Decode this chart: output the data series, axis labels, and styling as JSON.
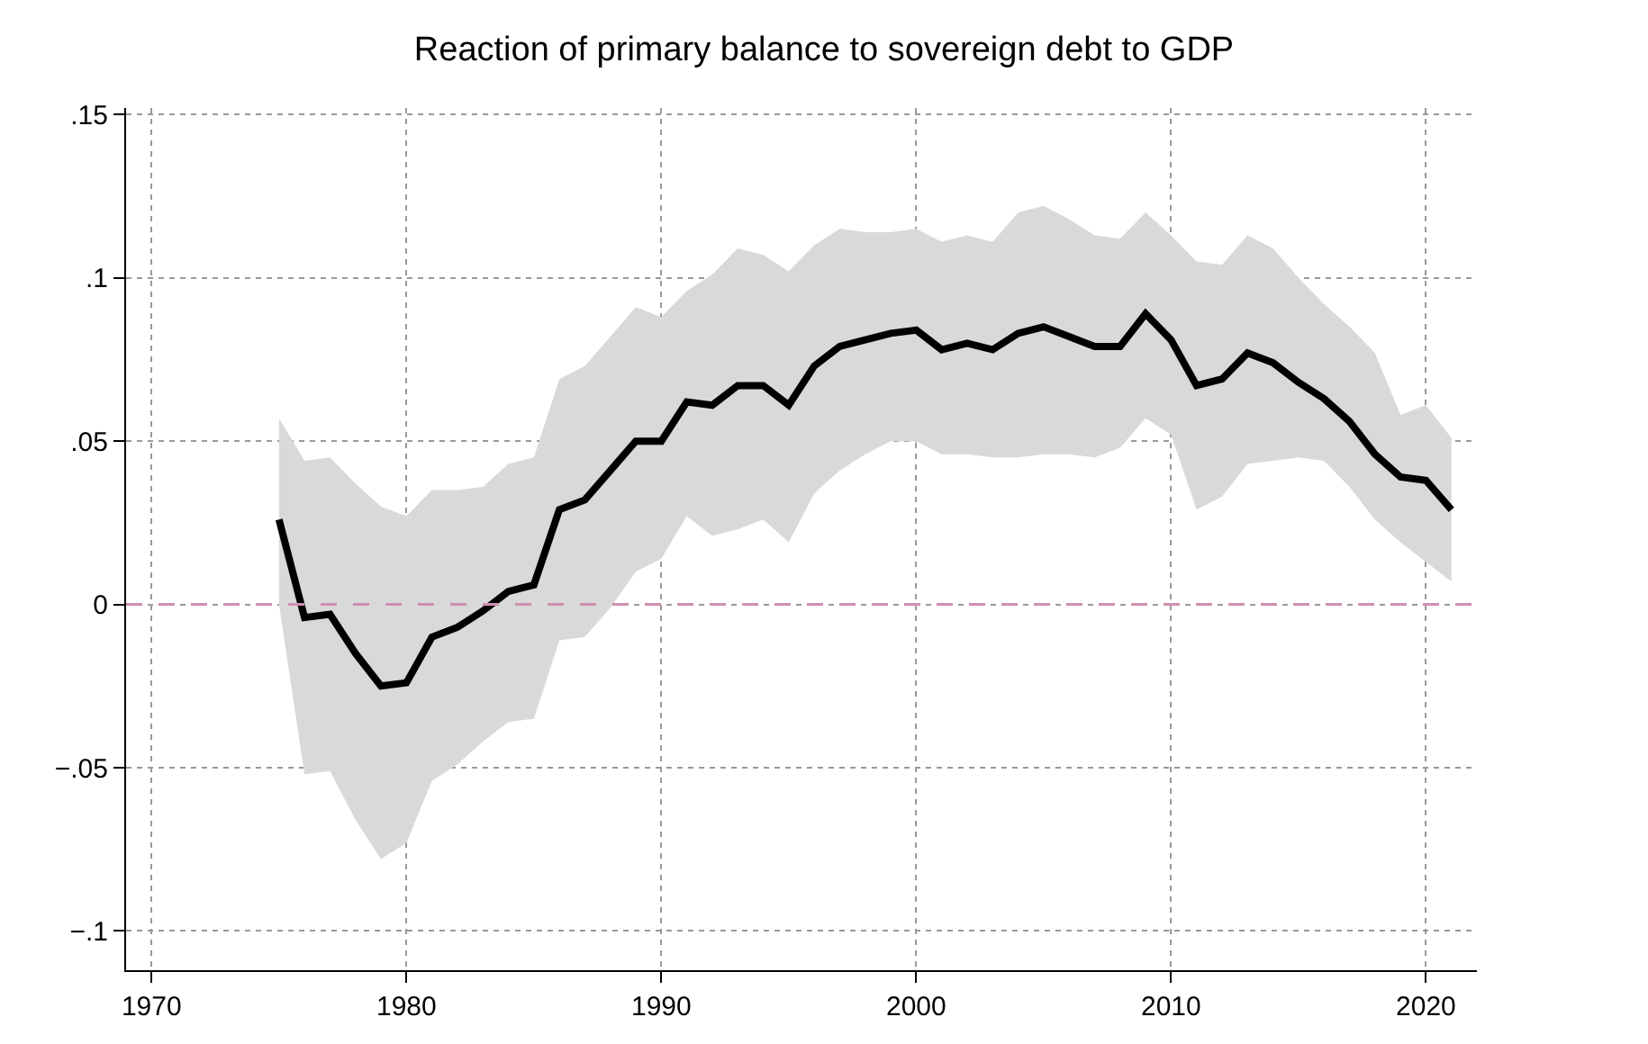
{
  "chart_data": {
    "type": "line",
    "title": "Reaction of primary balance to sovereign debt to GDP",
    "x": [
      1975,
      1976,
      1977,
      1978,
      1979,
      1980,
      1981,
      1982,
      1983,
      1984,
      1985,
      1986,
      1987,
      1988,
      1989,
      1990,
      1991,
      1992,
      1993,
      1994,
      1995,
      1996,
      1997,
      1998,
      1999,
      2000,
      2001,
      2002,
      2003,
      2004,
      2005,
      2006,
      2007,
      2008,
      2009,
      2010,
      2011,
      2012,
      2013,
      2014,
      2015,
      2016,
      2017,
      2018,
      2019,
      2020,
      2021
    ],
    "series": [
      {
        "color": "#000000",
        "values": [
          0.026,
          -0.004,
          -0.003,
          -0.015,
          -0.025,
          -0.024,
          -0.01,
          -0.007,
          -0.002,
          0.004,
          0.006,
          0.029,
          0.032,
          0.041,
          0.05,
          0.05,
          0.062,
          0.061,
          0.067,
          0.067,
          0.061,
          0.073,
          0.079,
          0.081,
          0.083,
          0.084,
          0.078,
          0.08,
          0.078,
          0.083,
          0.085,
          0.082,
          0.079,
          0.079,
          0.089,
          0.081,
          0.067,
          0.069,
          0.077,
          0.074,
          0.068,
          0.063,
          0.056,
          0.046,
          0.039,
          0.038,
          0.029
        ],
        "upper": [
          0.057,
          0.044,
          0.045,
          0.037,
          0.03,
          0.027,
          0.035,
          0.035,
          0.036,
          0.043,
          0.045,
          0.069,
          0.073,
          0.082,
          0.091,
          0.088,
          0.096,
          0.101,
          0.109,
          0.107,
          0.102,
          0.11,
          0.115,
          0.114,
          0.114,
          0.115,
          0.111,
          0.113,
          0.111,
          0.12,
          0.122,
          0.118,
          0.113,
          0.112,
          0.12,
          0.113,
          0.105,
          0.104,
          0.113,
          0.109,
          0.1,
          0.092,
          0.085,
          0.077,
          0.058,
          0.061,
          0.051
        ],
        "lower": [
          0.0,
          -0.052,
          -0.051,
          -0.066,
          -0.078,
          -0.073,
          -0.054,
          -0.049,
          -0.042,
          -0.036,
          -0.035,
          -0.011,
          -0.01,
          -0.001,
          0.01,
          0.014,
          0.027,
          0.021,
          0.023,
          0.026,
          0.019,
          0.034,
          0.041,
          0.046,
          0.05,
          0.05,
          0.046,
          0.046,
          0.045,
          0.045,
          0.046,
          0.046,
          0.045,
          0.048,
          0.057,
          0.052,
          0.029,
          0.033,
          0.043,
          0.044,
          0.045,
          0.044,
          0.036,
          0.026,
          0.019,
          0.013,
          0.007
        ]
      }
    ],
    "xlim": [
      1969,
      2022
    ],
    "xticks": [
      1970,
      1980,
      1990,
      2000,
      2010,
      2020
    ],
    "ylim": [
      -0.112,
      0.152
    ],
    "yticks": [
      {
        "value": 0.15,
        "label": ".15"
      },
      {
        "value": 0.1,
        "label": ".1"
      },
      {
        "value": 0.05,
        "label": ".05"
      },
      {
        "value": 0,
        "label": "0"
      },
      {
        "value": -0.05,
        "label": "−.05"
      },
      {
        "value": -0.1,
        "label": "−.1"
      }
    ],
    "ref_lines": [
      {
        "axis": "y",
        "value": 0,
        "label": null,
        "color": "#d08fb0",
        "line_style": "dashed"
      }
    ],
    "grid": true,
    "line_style": "solid"
  }
}
